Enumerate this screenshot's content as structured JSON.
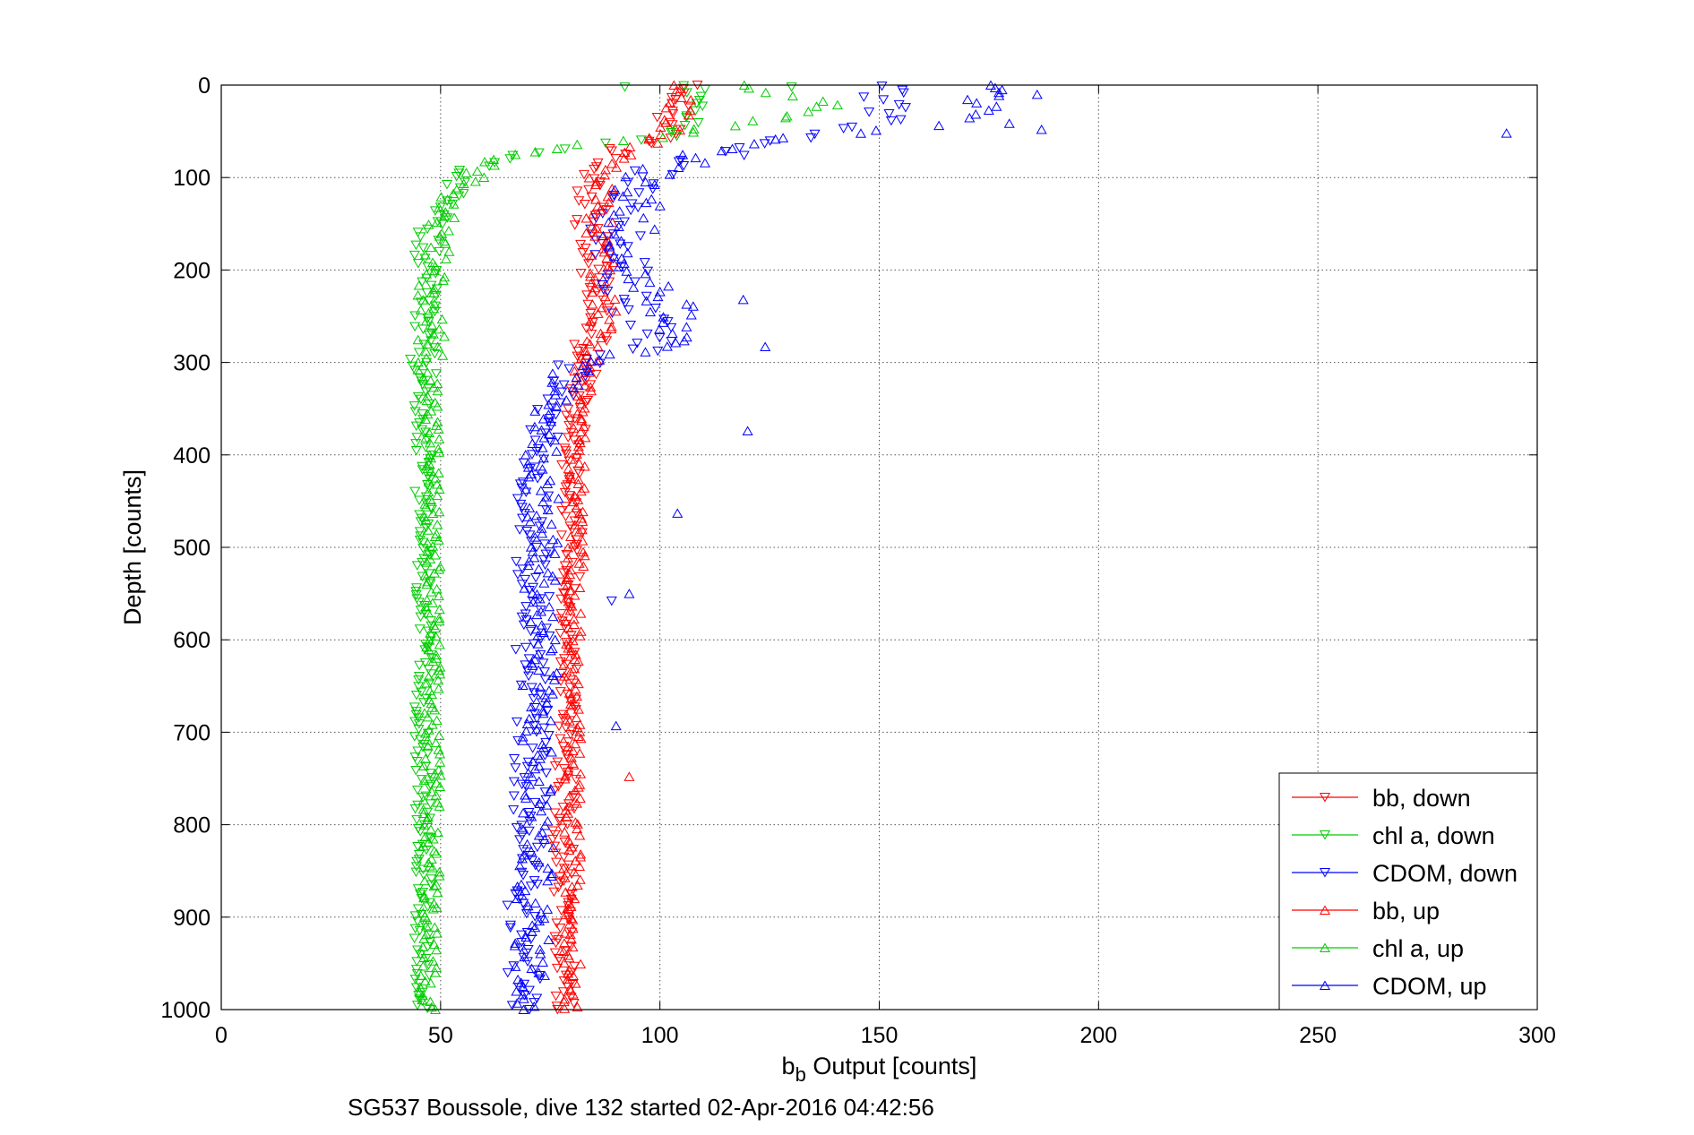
{
  "chart_data": {
    "type": "scatter",
    "title": "",
    "caption": "SG537 Boussole, dive 132 started 02-Apr-2016 04:42:56",
    "xlabel_main": "b",
    "xlabel_sub": "b",
    "xlabel_rest": " Output [counts]",
    "ylabel": "Depth [counts]",
    "xlim": [
      0,
      300
    ],
    "ylim": [
      0,
      1000
    ],
    "y_reversed": true,
    "grid": true,
    "legend_position": "bottom-right",
    "x_ticks": [
      "0",
      "50",
      "100",
      "150",
      "200",
      "250",
      "300"
    ],
    "y_ticks": [
      "0",
      "100",
      "200",
      "300",
      "400",
      "500",
      "600",
      "700",
      "800",
      "900",
      "1000"
    ],
    "colors": {
      "red": "#ff0000",
      "green": "#00cc00",
      "blue": "#0000ff"
    },
    "series": [
      {
        "name": "bb, down",
        "marker": "triangle-down",
        "color": "#ff0000",
        "profile": [
          [
            0,
            105
          ],
          [
            30,
            104
          ],
          [
            60,
            99
          ],
          [
            70,
            90
          ],
          [
            90,
            86
          ],
          [
            120,
            85
          ],
          [
            160,
            84
          ],
          [
            200,
            85
          ],
          [
            240,
            86
          ],
          [
            270,
            85
          ],
          [
            300,
            83
          ],
          [
            350,
            81
          ],
          [
            400,
            80
          ],
          [
            500,
            80
          ],
          [
            600,
            79
          ],
          [
            700,
            79
          ],
          [
            800,
            78
          ],
          [
            900,
            78
          ],
          [
            1000,
            78
          ]
        ],
        "spread": 2.5
      },
      {
        "name": "chl a, down",
        "marker": "triangle-down",
        "color": "#00cc00",
        "profile": [
          [
            0,
            108
          ],
          [
            30,
            108
          ],
          [
            55,
            104
          ],
          [
            65,
            84
          ],
          [
            75,
            68
          ],
          [
            90,
            58
          ],
          [
            110,
            53
          ],
          [
            140,
            49
          ],
          [
            170,
            47
          ],
          [
            200,
            46
          ],
          [
            250,
            46
          ],
          [
            300,
            46
          ],
          [
            400,
            46
          ],
          [
            500,
            46
          ],
          [
            600,
            46
          ],
          [
            700,
            46
          ],
          [
            800,
            46
          ],
          [
            900,
            46
          ],
          [
            1000,
            46
          ]
        ],
        "spread": 2
      },
      {
        "name": "CDOM, down",
        "marker": "triangle-down",
        "color": "#0000ff",
        "profile": [
          [
            0,
            150
          ],
          [
            40,
            150
          ],
          [
            60,
            128
          ],
          [
            80,
            110
          ],
          [
            100,
            94
          ],
          [
            150,
            90
          ],
          [
            200,
            92
          ],
          [
            250,
            95
          ],
          [
            285,
            98
          ],
          [
            295,
            85
          ],
          [
            320,
            78
          ],
          [
            400,
            72
          ],
          [
            500,
            71
          ],
          [
            600,
            71
          ],
          [
            700,
            71
          ],
          [
            800,
            70
          ],
          [
            900,
            69
          ],
          [
            1000,
            69
          ]
        ],
        "spread": 4
      },
      {
        "name": "bb, up",
        "marker": "triangle-up",
        "color": "#ff0000",
        "profile": [
          [
            0,
            105
          ],
          [
            40,
            104
          ],
          [
            60,
            99
          ],
          [
            80,
            90
          ],
          [
            100,
            87
          ],
          [
            150,
            86
          ],
          [
            200,
            87
          ],
          [
            250,
            88
          ],
          [
            280,
            84
          ],
          [
            300,
            84
          ],
          [
            350,
            82
          ],
          [
            400,
            81
          ],
          [
            500,
            81
          ],
          [
            600,
            80
          ],
          [
            700,
            80
          ],
          [
            800,
            80
          ],
          [
            900,
            80
          ],
          [
            1000,
            80
          ]
        ],
        "spread": 2
      },
      {
        "name": "chl a, up",
        "marker": "triangle-up",
        "color": "#00cc00",
        "profile": [
          [
            0,
            118
          ],
          [
            20,
            140
          ],
          [
            35,
            130
          ],
          [
            50,
            108
          ],
          [
            65,
            82
          ],
          [
            80,
            65
          ],
          [
            95,
            58
          ],
          [
            120,
            53
          ],
          [
            150,
            50
          ],
          [
            200,
            48
          ],
          [
            300,
            48
          ],
          [
            400,
            48
          ],
          [
            500,
            48
          ],
          [
            600,
            48
          ],
          [
            700,
            48
          ],
          [
            800,
            48
          ],
          [
            900,
            48
          ],
          [
            1000,
            47
          ]
        ],
        "spread": 2
      },
      {
        "name": "CDOM, up",
        "marker": "triangle-up",
        "color": "#0000ff",
        "profile": [
          [
            0,
            170
          ],
          [
            40,
            175
          ],
          [
            55,
            135
          ],
          [
            70,
            112
          ],
          [
            100,
            97
          ],
          [
            150,
            93
          ],
          [
            200,
            94
          ],
          [
            240,
            103
          ],
          [
            280,
            100
          ],
          [
            300,
            82
          ],
          [
            350,
            75
          ],
          [
            400,
            73
          ],
          [
            500,
            73
          ],
          [
            600,
            73
          ],
          [
            700,
            72
          ],
          [
            800,
            72
          ],
          [
            900,
            71
          ],
          [
            1000,
            70
          ]
        ],
        "spread": 4
      }
    ],
    "outliers": [
      {
        "series": "CDOM, up",
        "x": 293,
        "y": 52
      },
      {
        "series": "CDOM, up",
        "x": 186,
        "y": 10
      },
      {
        "series": "CDOM, up",
        "x": 187,
        "y": 48
      },
      {
        "series": "CDOM, up",
        "x": 178,
        "y": 5
      },
      {
        "series": "CDOM, up",
        "x": 124,
        "y": 283
      },
      {
        "series": "CDOM, up",
        "x": 120,
        "y": 374
      },
      {
        "series": "CDOM, up",
        "x": 104,
        "y": 463
      },
      {
        "series": "CDOM, up",
        "x": 93,
        "y": 550
      },
      {
        "series": "CDOM, up",
        "x": 90,
        "y": 693
      },
      {
        "series": "CDOM, up",
        "x": 119,
        "y": 232
      },
      {
        "series": "CDOM, down",
        "x": 89,
        "y": 558
      },
      {
        "series": "bb, up",
        "x": 93,
        "y": 748
      },
      {
        "series": "chl a, down",
        "x": 130,
        "y": 2
      },
      {
        "series": "chl a, down",
        "x": 92,
        "y": 2
      }
    ]
  }
}
